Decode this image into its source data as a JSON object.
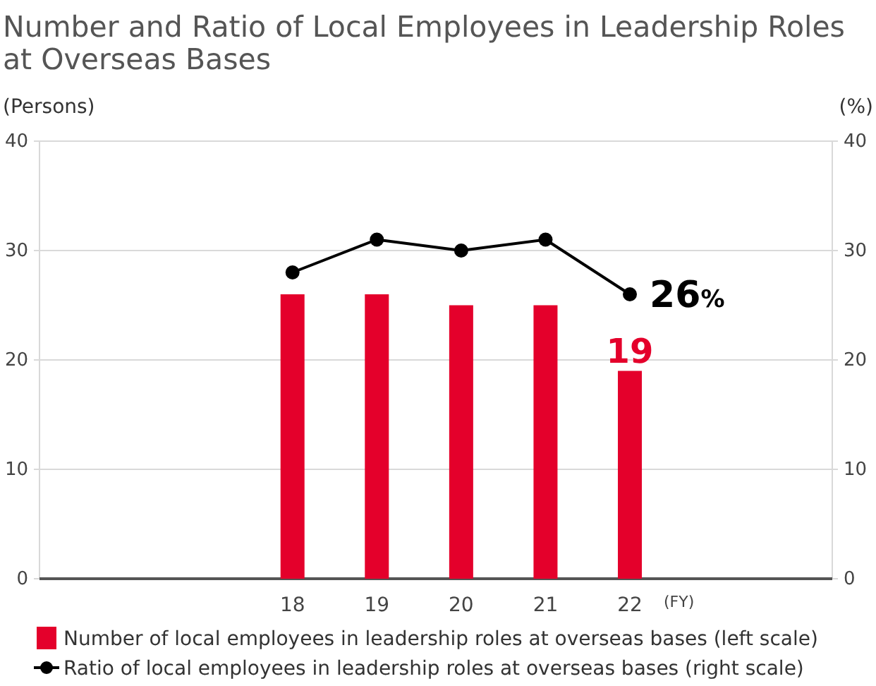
{
  "chart_data": {
    "type": "bar",
    "title": "Number and Ratio of Local Employees in Leadership Roles at Overseas Bases",
    "ylabel": "(Persons)",
    "y2label": "(%)",
    "xlabel": "(FY)",
    "x": [
      18,
      19,
      20,
      21,
      22
    ],
    "xlim": [
      15,
      24.4
    ],
    "xticks": [
      18,
      19,
      20,
      21,
      22
    ],
    "series": [
      {
        "name": "Number of local employees in leadership roles at overseas bases (left scale)",
        "type": "bar",
        "color": "#e4002b",
        "values": [
          26,
          26,
          25,
          25,
          19
        ],
        "value_labels": [
          null,
          null,
          null,
          null,
          "19"
        ]
      },
      {
        "name": "Ratio of local employees in leadership roles at overseas bases (right scale)",
        "type": "line",
        "axis": "y2",
        "color": "#000000",
        "values": [
          28,
          31,
          30,
          31,
          26
        ],
        "value_labels": [
          null,
          null,
          null,
          null,
          "26%"
        ]
      }
    ],
    "ylim": [
      0,
      40
    ],
    "yticks": [
      0,
      10,
      20,
      30,
      40
    ],
    "y2lim": [
      0,
      40
    ],
    "y2ticks": [
      0,
      10,
      20,
      30,
      40
    ],
    "grid": "y",
    "legend": "bottom",
    "marker": "circle",
    "line_style": "solid"
  }
}
